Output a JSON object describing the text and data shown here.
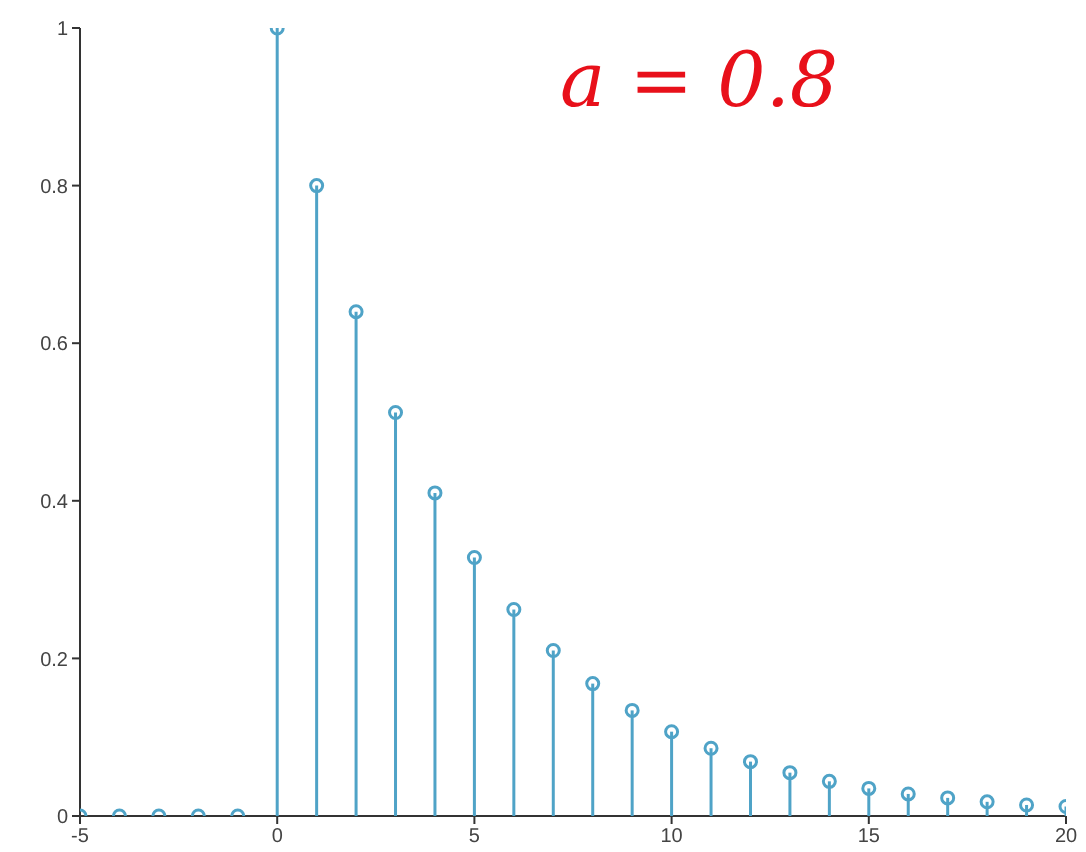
{
  "chart_data": {
    "type": "lollipop",
    "annotations": [
      "a = 0.8"
    ],
    "x": [
      -5,
      -4,
      -3,
      -2,
      -1,
      0,
      1,
      2,
      3,
      4,
      5,
      6,
      7,
      8,
      9,
      10,
      11,
      12,
      13,
      14,
      15,
      16,
      17,
      18,
      19,
      20
    ],
    "values": [
      0,
      0,
      0,
      0,
      0,
      1,
      0.8,
      0.64,
      0.512,
      0.41,
      0.328,
      0.262,
      0.21,
      0.168,
      0.134,
      0.107,
      0.086,
      0.069,
      0.055,
      0.044,
      0.035,
      0.028,
      0.023,
      0.018,
      0.014,
      0.012
    ],
    "color": "#4fa3c7",
    "marker": "circle",
    "xlim": [
      -5,
      20
    ],
    "xticks": [
      -5,
      0,
      5,
      10,
      15,
      20
    ],
    "ylim": [
      0,
      1
    ],
    "yticks": [
      0,
      0.2,
      0.4,
      0.6,
      0.8,
      1
    ],
    "grid": false
  }
}
